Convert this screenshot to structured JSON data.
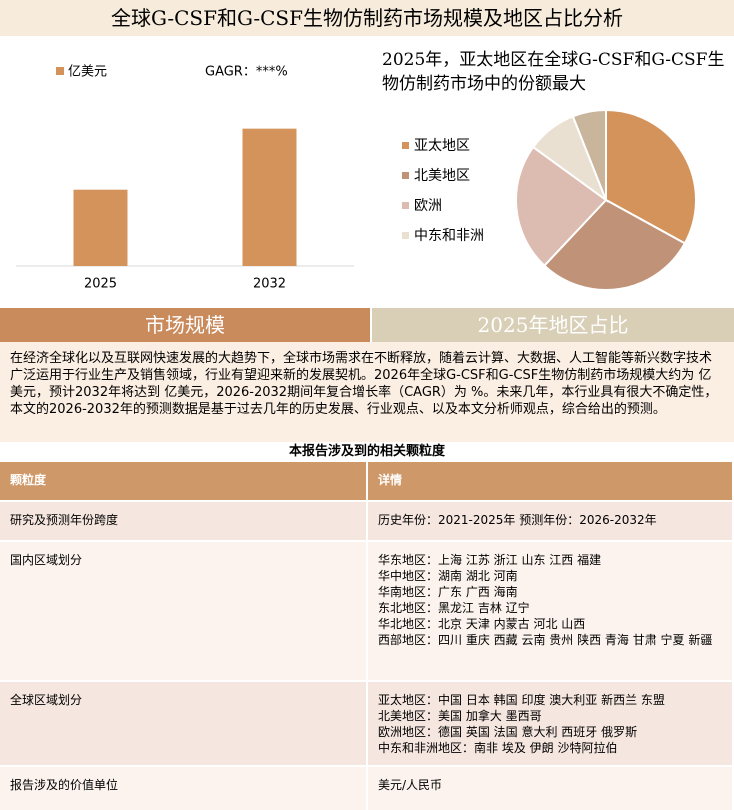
{
  "header": {
    "title": "全球G-CSF和G-CSF生物仿制药市场规模及地区占比分析"
  },
  "chart_data": [
    {
      "type": "bar",
      "series": [
        {
          "name": "亿美元",
          "color": "#d4935a",
          "values": [
            3.5,
            6.3
          ]
        }
      ],
      "categories": [
        "2025",
        "2032"
      ],
      "annotation": "GAGR：***%",
      "ylim": [
        0,
        10
      ]
    },
    {
      "type": "pie",
      "title": "2025年，亚太地区在全球G-CSF和G-CSF生物仿制药市场中的份额最大",
      "categories": [
        "亚太地区",
        "北美地区",
        "欧洲",
        "中东和非洲",
        null
      ],
      "values": [
        33,
        29,
        23,
        9,
        6
      ],
      "colors": [
        "#d4935a",
        "#c09277",
        "#dcbbb0",
        "#e9e0d2",
        "#c9b59c"
      ]
    }
  ],
  "tabs": [
    "市场规模",
    "2025年地区占比"
  ],
  "intro": "在经济全球化以及互联网快速发展的大趋势下，全球市场需求在不断释放，随着云计算、大数据、人工智能等新兴数字技术广泛运用于行业生产及销售领域，行业有望迎来新的发展契机。2026年全球G-CSF和G-CSF生物仿制药市场规模大约为 亿美元，预计2032年将达到 亿美元，2026-2032期间年复合增长率（CAGR）为 %。未来几年，本行业具有很大不确定性，本文的2026-2032年的预测数据是基于过去几年的历史发展、行业观点、以及本文分析师观点，综合给出的预测。",
  "table": {
    "title": "本报告涉及到的相关颗粒度",
    "columns": [
      "颗粒度",
      "详情"
    ],
    "rows": [
      {
        "label": "研究及预测年份跨度",
        "details": [
          "历史年份：2021-2025年 预测年份：2026-2032年"
        ]
      },
      {
        "label": "国内区域划分",
        "details": [
          "华东地区：上海 江苏 浙江 山东 江西 福建",
          "华中地区：湖南 湖北 河南",
          "华南地区：广东 广西 海南",
          "东北地区：黑龙江 吉林 辽宁",
          "华北地区：北京 天津 内蒙古 河北 山西",
          "西部地区：四川 重庆 西藏 云南 贵州 陕西 青海 甘肃 宁夏 新疆"
        ]
      },
      {
        "label": "全球区域划分",
        "details": [
          "亚太地区：中国 日本 韩国 印度 澳大利亚 新西兰 东盟",
          "北美地区：美国 加拿大 墨西哥",
          "欧洲地区：德国 英国 法国 意大利 西班牙 俄罗斯",
          "中东和非洲地区：南非 埃及 伊朗 沙特阿拉伯"
        ]
      },
      {
        "label": "报告涉及的价值单位",
        "details": [
          "美元/人民币"
        ]
      }
    ]
  }
}
